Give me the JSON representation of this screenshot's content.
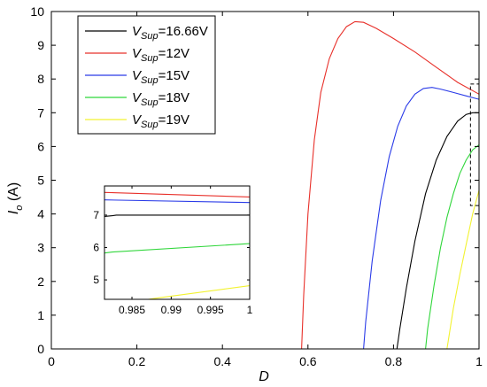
{
  "chart_data": {
    "type": "line",
    "xlabel": "D",
    "ylabel": "I",
    "ylabel_sub": "o",
    "ylabel_unit": " (A)",
    "xlim": [
      0,
      1
    ],
    "ylim": [
      0,
      10
    ],
    "x_ticks": [
      "0",
      "0.2",
      "0.4",
      "0.6",
      "0.8",
      "1"
    ],
    "y_ticks": [
      "0",
      "1",
      "2",
      "3",
      "4",
      "5",
      "6",
      "7",
      "8",
      "9",
      "10"
    ],
    "x_tick_values": [
      0,
      0.2,
      0.4,
      0.6,
      0.8,
      1
    ],
    "y_tick_values": [
      0,
      1,
      2,
      3,
      4,
      5,
      6,
      7,
      8,
      9,
      10
    ],
    "grid": false,
    "legend_position": "top-left",
    "series": [
      {
        "name": "16.66V",
        "legend_prefix": "V",
        "legend_sub": "Sup",
        "legend_value": "=16.66V",
        "color": "#000000",
        "x": [
          0.05,
          0.808,
          0.815,
          0.83,
          0.85,
          0.875,
          0.9,
          0.925,
          0.95,
          0.97,
          0.985,
          1.0
        ],
        "y": [
          0,
          0,
          0.6,
          1.8,
          3.2,
          4.6,
          5.6,
          6.3,
          6.75,
          6.95,
          7.0,
          7.0
        ]
      },
      {
        "name": "12V",
        "legend_prefix": "V",
        "legend_sub": "Sup",
        "legend_value": "=12V",
        "color": "#e8302a",
        "x": [
          0.05,
          0.585,
          0.59,
          0.6,
          0.615,
          0.63,
          0.65,
          0.67,
          0.69,
          0.71,
          0.73,
          0.76,
          0.8,
          0.85,
          0.9,
          0.95,
          1.0
        ],
        "y": [
          0,
          0,
          1.6,
          4.0,
          6.2,
          7.6,
          8.6,
          9.2,
          9.55,
          9.7,
          9.68,
          9.5,
          9.2,
          8.8,
          8.35,
          7.9,
          7.55
        ]
      },
      {
        "name": "15V",
        "legend_prefix": "V",
        "legend_sub": "Sup",
        "legend_value": "=15V",
        "color": "#2a3be8",
        "x": [
          0.05,
          0.73,
          0.735,
          0.75,
          0.77,
          0.79,
          0.81,
          0.83,
          0.85,
          0.87,
          0.89,
          0.91,
          0.94,
          0.97,
          1.0
        ],
        "y": [
          0,
          0,
          0.8,
          2.6,
          4.4,
          5.7,
          6.6,
          7.2,
          7.55,
          7.72,
          7.75,
          7.7,
          7.6,
          7.5,
          7.4
        ]
      },
      {
        "name": "18V",
        "legend_prefix": "V",
        "legend_sub": "Sup",
        "legend_value": "=18V",
        "color": "#2fd63a",
        "x": [
          0.05,
          0.875,
          0.88,
          0.895,
          0.91,
          0.925,
          0.94,
          0.955,
          0.97,
          0.985,
          1.0
        ],
        "y": [
          0,
          0,
          0.6,
          1.9,
          3.0,
          3.9,
          4.6,
          5.2,
          5.6,
          5.9,
          6.05
        ]
      },
      {
        "name": "19V",
        "legend_prefix": "V",
        "legend_sub": "Sup",
        "legend_value": "=19V",
        "color": "#f2f230",
        "x": [
          0.05,
          0.925,
          0.93,
          0.94,
          0.955,
          0.97,
          0.985,
          1.0
        ],
        "y": [
          0,
          0,
          0.4,
          1.2,
          2.2,
          3.1,
          4.0,
          4.7
        ]
      }
    ],
    "zoom_box": {
      "xlim": [
        0.98,
        1.0
      ],
      "ylim": [
        4.25,
        7.85
      ]
    },
    "inset": {
      "xlim": [
        0.9815,
        1.0
      ],
      "ylim": [
        4.4,
        7.9
      ],
      "x_ticks": [
        "0.985",
        "0.99",
        "0.995",
        "1"
      ],
      "y_ticks": [
        "5",
        "6",
        "7"
      ],
      "x_tick_values": [
        0.985,
        0.99,
        0.995,
        1.0
      ],
      "y_tick_values": [
        5,
        6,
        7
      ],
      "series": [
        {
          "name": "12V",
          "color": "#e8302a",
          "x": [
            0.9815,
            1.0
          ],
          "y": [
            7.7,
            7.56
          ]
        },
        {
          "name": "15V",
          "color": "#2a3be8",
          "x": [
            0.9815,
            1.0
          ],
          "y": [
            7.47,
            7.39
          ]
        },
        {
          "name": "16.66V",
          "color": "#000000",
          "x": [
            0.9815,
            0.9825,
            0.983,
            1.0
          ],
          "y": [
            6.96,
            6.98,
            7.0,
            7.0
          ]
        },
        {
          "name": "18V",
          "color": "#2fd63a",
          "x": [
            0.9815,
            0.9825,
            1.0
          ],
          "y": [
            5.83,
            5.86,
            6.12
          ]
        },
        {
          "name": "19V",
          "color": "#f2f230",
          "x": [
            0.9815,
            0.9885,
            1.0
          ],
          "y": [
            4.2,
            4.45,
            4.82
          ]
        }
      ]
    }
  }
}
